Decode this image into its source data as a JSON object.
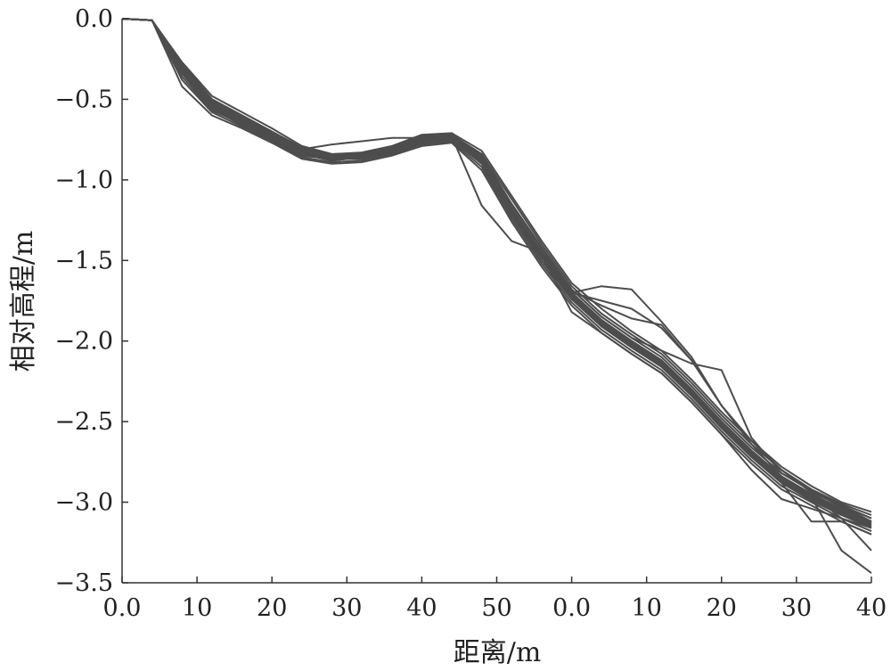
{
  "chart_data": {
    "type": "line",
    "title": "",
    "xlabel": "距离/m",
    "ylabel": "相对高程/m",
    "x_tick_labels": [
      "0.0",
      "10",
      "20",
      "30",
      "40",
      "50",
      "0.0",
      "10",
      "20",
      "30",
      "40"
    ],
    "y_ticks": [
      0.0,
      -0.5,
      -1.0,
      -1.5,
      -2.0,
      -2.5,
      -3.0,
      -3.5
    ],
    "y_tick_labels": [
      "0.0",
      "−0.5",
      "−1.0",
      "−1.5",
      "−2.0",
      "−2.5",
      "−3.0",
      "−3.5"
    ],
    "ylim": [
      -3.5,
      0.0
    ],
    "grid": false,
    "legend": "none",
    "line_color": "#4d4d4d",
    "x": [
      0,
      4,
      8,
      12,
      16,
      20,
      24,
      28,
      32,
      36,
      40,
      44,
      48,
      52,
      56,
      60,
      64,
      68,
      72,
      76,
      80,
      84,
      88,
      92,
      96,
      100
    ],
    "series": [
      {
        "values": [
          0,
          -0.01,
          -0.28,
          -0.5,
          -0.6,
          -0.7,
          -0.8,
          -0.85,
          -0.84,
          -0.8,
          -0.73,
          -0.72,
          -0.85,
          -1.15,
          -1.42,
          -1.68,
          -1.85,
          -1.98,
          -2.1,
          -2.28,
          -2.48,
          -2.66,
          -2.82,
          -2.93,
          -3.02,
          -3.1
        ]
      },
      {
        "values": [
          0,
          -0.01,
          -0.3,
          -0.52,
          -0.62,
          -0.72,
          -0.82,
          -0.86,
          -0.85,
          -0.81,
          -0.74,
          -0.73,
          -0.87,
          -1.18,
          -1.45,
          -1.7,
          -1.87,
          -2.0,
          -2.12,
          -2.3,
          -2.5,
          -2.68,
          -2.84,
          -2.95,
          -3.04,
          -3.12
        ]
      },
      {
        "values": [
          0,
          -0.01,
          -0.32,
          -0.54,
          -0.64,
          -0.74,
          -0.84,
          -0.88,
          -0.86,
          -0.82,
          -0.76,
          -0.74,
          -0.88,
          -1.2,
          -1.47,
          -1.72,
          -1.89,
          -2.02,
          -2.14,
          -2.32,
          -2.52,
          -2.7,
          -2.86,
          -2.97,
          -3.06,
          -3.14
        ]
      },
      {
        "values": [
          0,
          -0.01,
          -0.34,
          -0.56,
          -0.66,
          -0.75,
          -0.85,
          -0.87,
          -0.87,
          -0.83,
          -0.77,
          -0.75,
          -0.9,
          -1.22,
          -1.5,
          -1.74,
          -1.91,
          -2.04,
          -2.16,
          -2.34,
          -2.54,
          -2.72,
          -2.88,
          -2.99,
          -3.08,
          -3.16
        ]
      },
      {
        "values": [
          0,
          -0.01,
          -0.36,
          -0.57,
          -0.65,
          -0.74,
          -0.83,
          -0.86,
          -0.85,
          -0.8,
          -0.74,
          -0.72,
          -0.84,
          -1.12,
          -1.4,
          -1.66,
          -1.83,
          -1.96,
          -2.08,
          -2.26,
          -2.46,
          -2.64,
          -2.8,
          -2.92,
          -3.01,
          -3.08
        ]
      },
      {
        "values": [
          0,
          -0.01,
          -0.38,
          -0.58,
          -0.67,
          -0.76,
          -0.86,
          -0.89,
          -0.88,
          -0.84,
          -0.78,
          -0.76,
          -0.92,
          -1.24,
          -1.52,
          -1.76,
          -1.93,
          -2.06,
          -2.18,
          -2.36,
          -2.56,
          -2.74,
          -2.9,
          -3.0,
          -3.1,
          -3.18
        ]
      },
      {
        "values": [
          0,
          -0.01,
          -0.42,
          -0.6,
          -0.68,
          -0.77,
          -0.87,
          -0.9,
          -0.89,
          -0.85,
          -0.79,
          -0.77,
          -0.94,
          -1.26,
          -1.54,
          -1.78,
          -1.95,
          -2.08,
          -2.2,
          -2.38,
          -2.58,
          -2.76,
          -2.92,
          -3.02,
          -3.12,
          -3.2
        ]
      },
      {
        "values": [
          0,
          -0.01,
          -0.27,
          -0.48,
          -0.58,
          -0.68,
          -0.79,
          -0.84,
          -0.83,
          -0.79,
          -0.72,
          -0.71,
          -0.82,
          -1.1,
          -1.38,
          -1.64,
          -1.8,
          -1.94,
          -2.06,
          -2.24,
          -2.44,
          -2.62,
          -2.78,
          -2.9,
          -3.0,
          -3.06
        ]
      },
      {
        "values": [
          0,
          -0.01,
          -0.3,
          -0.53,
          -0.63,
          -0.73,
          -0.84,
          -0.87,
          -0.86,
          -0.81,
          -0.75,
          -0.74,
          -0.89,
          -1.19,
          -1.47,
          -1.7,
          -1.75,
          -1.8,
          -1.92,
          -2.12,
          -2.4,
          -2.62,
          -2.8,
          -2.93,
          -3.03,
          -3.12
        ]
      },
      {
        "values": [
          0,
          -0.01,
          -0.33,
          -0.55,
          -0.65,
          -0.74,
          -0.85,
          -0.86,
          -0.85,
          -0.82,
          -0.76,
          -0.74,
          -0.88,
          -1.2,
          -1.47,
          -1.7,
          -1.66,
          -1.68,
          -1.88,
          -2.1,
          -2.4,
          -2.64,
          -2.84,
          -2.96,
          -3.06,
          -3.14
        ]
      },
      {
        "values": [
          0,
          -0.01,
          -0.31,
          -0.53,
          -0.62,
          -0.72,
          -0.81,
          -0.78,
          -0.76,
          -0.74,
          -0.74,
          -0.73,
          -0.87,
          -1.18,
          -1.45,
          -1.7,
          -1.87,
          -2.0,
          -2.12,
          -2.3,
          -2.5,
          -2.68,
          -2.84,
          -2.95,
          -3.04,
          -3.12
        ]
      },
      {
        "values": [
          0,
          -0.01,
          -0.32,
          -0.54,
          -0.64,
          -0.74,
          -0.84,
          -0.88,
          -0.86,
          -0.82,
          -0.76,
          -0.74,
          -0.88,
          -1.2,
          -1.47,
          -1.72,
          -1.89,
          -2.02,
          -2.14,
          -2.32,
          -2.52,
          -2.7,
          -2.86,
          -2.97,
          -3.3,
          -3.44
        ]
      },
      {
        "values": [
          0,
          -0.01,
          -0.34,
          -0.56,
          -0.66,
          -0.75,
          -0.85,
          -0.87,
          -0.87,
          -0.83,
          -0.77,
          -0.75,
          -0.9,
          -1.22,
          -1.5,
          -1.74,
          -1.91,
          -2.04,
          -2.16,
          -2.34,
          -2.54,
          -2.72,
          -2.88,
          -3.12,
          -3.12,
          -3.2
        ]
      },
      {
        "values": [
          0,
          -0.01,
          -0.3,
          -0.52,
          -0.62,
          -0.72,
          -0.82,
          -0.86,
          -0.85,
          -0.81,
          -0.74,
          -0.73,
          -0.87,
          -1.18,
          -1.45,
          -1.7,
          -1.87,
          -2.0,
          -2.12,
          -2.3,
          -2.5,
          -2.68,
          -2.84,
          -2.95,
          -3.1,
          -3.3
        ]
      },
      {
        "values": [
          0,
          -0.01,
          -0.3,
          -0.52,
          -0.62,
          -0.72,
          -0.82,
          -0.86,
          -0.85,
          -0.81,
          -0.74,
          -0.73,
          -1.16,
          -1.38,
          -1.45,
          -1.7,
          -1.87,
          -2.0,
          -2.12,
          -2.3,
          -2.5,
          -2.68,
          -2.84,
          -2.95,
          -3.04,
          -3.12
        ]
      },
      {
        "values": [
          0,
          -0.01,
          -0.32,
          -0.54,
          -0.64,
          -0.74,
          -0.84,
          -0.88,
          -0.86,
          -0.82,
          -0.76,
          -0.74,
          -0.88,
          -1.2,
          -1.47,
          -1.82,
          -1.95,
          -2.08,
          -2.2,
          -2.38,
          -2.58,
          -2.8,
          -2.98,
          -3.04,
          -3.1,
          -3.16
        ]
      },
      {
        "values": [
          0,
          -0.01,
          -0.28,
          -0.5,
          -0.6,
          -0.7,
          -0.8,
          -0.85,
          -0.84,
          -0.8,
          -0.73,
          -0.72,
          -0.85,
          -1.15,
          -1.42,
          -1.68,
          -1.85,
          -1.98,
          -2.06,
          -2.14,
          -2.18,
          -2.6,
          -2.82,
          -2.93,
          -3.02,
          -3.1
        ]
      },
      {
        "values": [
          0,
          -0.01,
          -0.29,
          -0.51,
          -0.61,
          -0.71,
          -0.81,
          -0.85,
          -0.84,
          -0.8,
          -0.73,
          -0.72,
          -0.86,
          -1.16,
          -1.43,
          -1.69,
          -1.78,
          -1.86,
          -1.9,
          -2.12,
          -2.4,
          -2.62,
          -2.8,
          -2.94,
          -3.02,
          -3.12
        ]
      },
      {
        "values": [
          0,
          -0.01,
          -0.31,
          -0.53,
          -0.63,
          -0.73,
          -0.83,
          -0.87,
          -0.85,
          -0.82,
          -0.75,
          -0.73,
          -0.87,
          -1.19,
          -1.46,
          -1.71,
          -1.88,
          -2.01,
          -2.13,
          -2.31,
          -2.51,
          -2.69,
          -2.85,
          -2.96,
          -3.05,
          -3.13
        ]
      },
      {
        "values": [
          0,
          -0.01,
          -0.33,
          -0.55,
          -0.65,
          -0.74,
          -0.84,
          -0.87,
          -0.86,
          -0.82,
          -0.76,
          -0.74,
          -0.89,
          -1.21,
          -1.48,
          -1.73,
          -1.9,
          -2.03,
          -2.15,
          -2.33,
          -2.53,
          -2.71,
          -2.87,
          -2.98,
          -3.07,
          -3.15
        ]
      }
    ]
  }
}
